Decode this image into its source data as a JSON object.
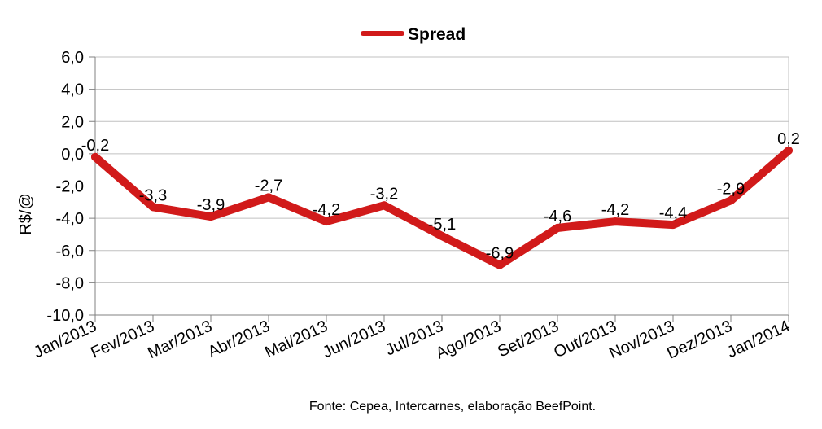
{
  "chart_data": {
    "type": "line",
    "categories": [
      "Jan/2013",
      "Fev/2013",
      "Mar/2013",
      "Abr/2013",
      "Mai/2013",
      "Jun/2013",
      "Jul/2013",
      "Ago/2013",
      "Set/2013",
      "Out/2013",
      "Nov/2013",
      "Dez/2013",
      "Jan/2014"
    ],
    "series": [
      {
        "name": "Spread",
        "values": [
          -0.2,
          -3.3,
          -3.9,
          -2.7,
          -4.2,
          -3.2,
          -5.1,
          -6.9,
          -4.6,
          -4.2,
          -4.4,
          -2.9,
          0.2
        ],
        "data_labels": [
          "-0,2",
          "-3,3",
          "-3,9",
          "-2,7",
          "-4,2",
          "-3,2",
          "-5,1",
          "-6,9",
          "-4,6",
          "-4,2",
          "-4,4",
          "-2,9",
          "0,2"
        ],
        "color": "#d11a1a"
      }
    ],
    "ylabel": "R$/@",
    "xlabel": "",
    "ylim": [
      -10,
      6
    ],
    "yticks": [
      "6,0",
      "4,0",
      "2,0",
      "0,0",
      "-2,0",
      "-4,0",
      "-6,0",
      "-8,0",
      "-10,0"
    ],
    "ytick_values": [
      6,
      4,
      2,
      0,
      -2,
      -4,
      -6,
      -8,
      -10
    ],
    "grid": true,
    "legend_position": "top-center",
    "gridline_color": "#c0c0c0",
    "axis_color": "#808080"
  },
  "source_text": "Fonte: Cepea, Intercarnes, elaboração BeefPoint."
}
